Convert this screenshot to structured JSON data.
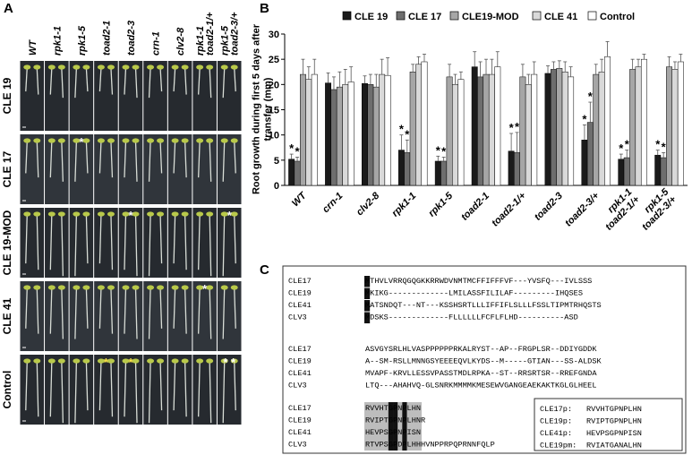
{
  "panel_a": {
    "label": "A",
    "columns": [
      "WT",
      "rpk1-1",
      "rpk1-5",
      "toad2-1",
      "toad2-3",
      "crn-1",
      "clv2-8",
      [
        "rpk1-1",
        "toad2-1/+"
      ],
      [
        "rpk1-5",
        "toad2-3/+"
      ]
    ],
    "rows": [
      {
        "label": "CLE 19",
        "marks": [
          null,
          null,
          null,
          null,
          null,
          null,
          null,
          null,
          null
        ]
      },
      {
        "label": "CLE 17",
        "marks": [
          null,
          null,
          "*",
          null,
          null,
          null,
          null,
          null,
          null
        ]
      },
      {
        "label": "CLE 19-MOD",
        "marks": [
          null,
          null,
          null,
          null,
          "*",
          null,
          null,
          null,
          "*"
        ]
      },
      {
        "label": "CLE 41",
        "marks": [
          null,
          null,
          null,
          null,
          null,
          null,
          null,
          "*",
          null
        ]
      },
      {
        "label": "Control",
        "marks": [
          null,
          null,
          null,
          "*",
          "*",
          null,
          null,
          null,
          "* *"
        ]
      }
    ]
  },
  "chart_data": {
    "type": "bar",
    "label": "B",
    "ylabel": [
      "Root growth during first 5 days after",
      "transfer (mm)"
    ],
    "categories": [
      "WT",
      "crn-1",
      "clv2-8",
      "rpk1-1",
      "rpk1-5",
      "toad2-1",
      "toad2-1/+",
      "toad2-3",
      "toad2-3/+",
      [
        "rpk1-1",
        "toad2-1/+"
      ],
      [
        "rpk1-5",
        "toad2-3/+"
      ]
    ],
    "ylim": [
      0,
      30
    ],
    "yticks": [
      0,
      5,
      10,
      15,
      20,
      25,
      30
    ],
    "series": [
      {
        "name": "CLE 19",
        "color": "#1a1a1a",
        "values": [
          5.2,
          20.3,
          20.2,
          7,
          4.8,
          23.5,
          6.8,
          22.2,
          9,
          5.2,
          6
        ],
        "errors": [
          1,
          2,
          1.5,
          3,
          1,
          3,
          3.5,
          1.5,
          3,
          1,
          1
        ],
        "labels": [
          "*",
          null,
          null,
          "*",
          "*",
          null,
          "*",
          null,
          "*",
          "*",
          "*"
        ]
      },
      {
        "name": "CLE 17",
        "color": "#6e6e6e",
        "values": [
          4.8,
          19,
          20,
          6.5,
          4.8,
          21.5,
          6.5,
          23,
          12.5,
          5.5,
          5.5
        ],
        "errors": [
          0.8,
          2.5,
          2,
          2.5,
          0.8,
          3,
          4,
          1.5,
          4,
          1.5,
          1
        ],
        "labels": [
          "*",
          null,
          null,
          "*",
          "*",
          null,
          "*",
          null,
          "*",
          "*",
          "*"
        ]
      },
      {
        "name": "CLE19-MOD",
        "color": "#a6a6a6",
        "values": [
          22,
          19.5,
          19.5,
          22.5,
          21.5,
          22,
          21.5,
          23.2,
          22,
          23,
          23.5
        ],
        "errors": [
          3,
          3,
          2.5,
          1.5,
          2.5,
          3,
          2.5,
          1.5,
          2,
          2,
          2
        ]
      },
      {
        "name": "CLE 41",
        "color": "#d9d9d9",
        "values": [
          21,
          20,
          22,
          24,
          20,
          22,
          20,
          22.5,
          22.5,
          23.5,
          23
        ],
        "errors": [
          2.5,
          3,
          3,
          1.5,
          2,
          3,
          2,
          2,
          2.5,
          1.5,
          1.5
        ]
      },
      {
        "name": "Control",
        "color": "#ffffff",
        "values": [
          22,
          20.5,
          21.8,
          24.5,
          21,
          23.5,
          22,
          21.5,
          25.5,
          25,
          24.5
        ],
        "errors": [
          3,
          3,
          3.5,
          1.5,
          1.5,
          3,
          2.5,
          2,
          3,
          1,
          1.5
        ]
      }
    ]
  },
  "panel_c": {
    "label": "C",
    "blocks": [
      [
        {
          "name": "CLE17",
          "seq": "MTHVLVRRQGQGKKRRWDVNMTMCFFIFFFVF---YVSFQ---IVLSSS"
        },
        {
          "name": "CLE19",
          "seq": "MKIKG-------------LMILASSFILILAF---------IHQSES"
        },
        {
          "name": "CLE41",
          "seq": "MATSNDQT---NT---KSSHSRTLLLIFFIFLSLLLFSSLTIPMTRHQSTS"
        },
        {
          "name": "CLV3",
          "seq": "MDSKS-------------FLLLLLLFCFLFLHD----------ASD"
        }
      ],
      [
        {
          "name": "CLE17",
          "seq": "ASVGYSRLHLVASPPPPPPRKALRYST--AP--FRGPLSR--DDIYGDDK"
        },
        {
          "name": "CLE19",
          "seq": "A--SM-RSLLMNNGSYEEEEQVLKYDS--M-----GTIAN---SS-ALDSK"
        },
        {
          "name": "CLE41",
          "seq": "MVAPF-KRVLLESSVPASSTMDLRPKA--ST--RRSRTSR--RREFGNDA"
        },
        {
          "name": "CLV3",
          "seq": "LTQ---AHAHVQ-GLSNRKMMMMKMESEWVGANGEAEKAKTKGLGLHEEL"
        }
      ],
      [
        {
          "name": "CLE17",
          "seq": "RVVHTGPNPLHN"
        },
        {
          "name": "CLE19",
          "seq": "RVIPTGPNPLHNR"
        },
        {
          "name": "CLE41",
          "seq": "HEVPSGPNPISN"
        },
        {
          "name": "CLV3",
          "seq": "RTVPSGPDPLHHHVNPPRPQPRNNFQLP"
        }
      ]
    ],
    "inset": [
      {
        "name": "CLE17p:",
        "seq": "RVVHTGPNPLHN"
      },
      {
        "name": "CLE19p:",
        "seq": "RVIPTGPNPLHN"
      },
      {
        "name": "CLE41p:",
        "seq": "HEVPSGPNPISN"
      },
      {
        "name": "CLE19pm:",
        "seq": "RVIATGANALHN"
      }
    ]
  }
}
